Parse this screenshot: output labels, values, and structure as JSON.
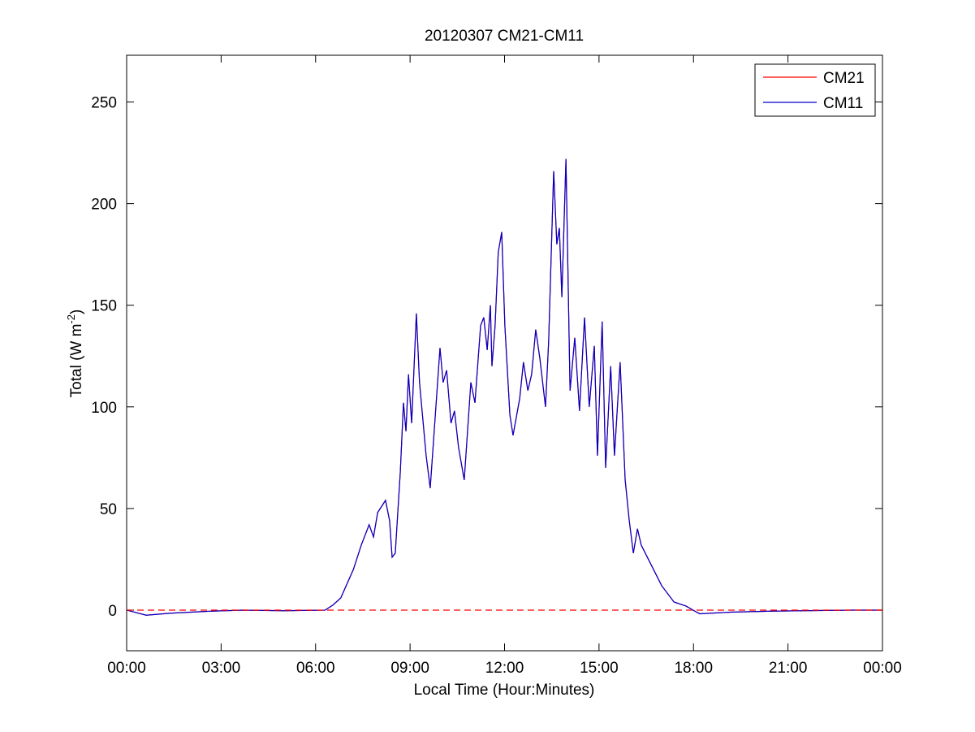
{
  "chart_data": {
    "type": "line",
    "title": "20120307 CM21-CM11",
    "xlabel": "Local Time (Hour:Minutes)",
    "ylabel": {
      "text": "Total (W m",
      "superscript": "-2",
      "suffix": ")"
    },
    "xlim": [
      0,
      24
    ],
    "ylim": [
      -20,
      273
    ],
    "xticks": [
      {
        "value": 0,
        "label": "00:00"
      },
      {
        "value": 3,
        "label": "03:00"
      },
      {
        "value": 6,
        "label": "06:00"
      },
      {
        "value": 9,
        "label": "09:00"
      },
      {
        "value": 12,
        "label": "12:00"
      },
      {
        "value": 15,
        "label": "15:00"
      },
      {
        "value": 18,
        "label": "18:00"
      },
      {
        "value": 21,
        "label": "21:00"
      },
      {
        "value": 24,
        "label": "00:00"
      }
    ],
    "yticks": [
      0,
      50,
      100,
      150,
      200,
      250
    ],
    "hline": 0,
    "hline_color": "#ff0000",
    "legend": "top-right",
    "x": [
      0,
      0.62,
      1.4,
      2.7,
      3.7,
      5,
      6.3,
      6.55,
      6.8,
      7.2,
      7.45,
      7.7,
      7.84,
      7.97,
      8.22,
      8.35,
      8.43,
      8.53,
      8.69,
      8.79,
      8.87,
      8.95,
      9.05,
      9.2,
      9.3,
      9.51,
      9.64,
      9.82,
      9.95,
      10.05,
      10.16,
      10.3,
      10.41,
      10.54,
      10.72,
      10.93,
      11.06,
      11.24,
      11.34,
      11.45,
      11.55,
      11.6,
      11.7,
      11.8,
      11.91,
      12.01,
      12.17,
      12.27,
      12.48,
      12.6,
      12.74,
      12.86,
      12.99,
      13.12,
      13.3,
      13.4,
      13.56,
      13.66,
      13.74,
      13.82,
      13.95,
      14.08,
      14.23,
      14.38,
      14.54,
      14.69,
      14.85,
      14.95,
      15.1,
      15.21,
      15.37,
      15.49,
      15.67,
      15.83,
      15.96,
      16.09,
      16.22,
      16.34,
      16.6,
      16.99,
      17.38,
      17.76,
      18.1,
      18.2,
      19.18,
      20.47,
      23.05,
      24
    ],
    "series": [
      {
        "name": "CM21",
        "color": "#ff0000",
        "values": [
          0,
          -2.5,
          -1.5,
          -0.5,
          0,
          -0.3,
          0,
          2.5,
          6,
          20,
          32,
          42,
          36,
          48,
          54,
          44,
          26,
          28,
          68,
          102,
          88,
          116,
          92,
          146,
          112,
          76,
          60,
          100,
          129,
          112,
          118,
          92,
          98,
          80,
          64,
          112,
          102,
          140,
          144,
          128,
          150,
          120,
          140,
          176,
          186,
          140,
          96,
          86,
          104,
          122,
          108,
          116,
          138,
          124,
          100,
          132,
          216,
          180,
          188,
          154,
          222,
          108,
          134,
          98,
          144,
          100,
          130,
          76,
          142,
          70,
          120,
          76,
          122,
          64,
          44,
          28,
          40,
          32,
          24,
          12,
          4,
          2,
          -1,
          -1.8,
          -1,
          -0.5,
          0,
          0
        ]
      },
      {
        "name": "CM11",
        "color": "#0000cc",
        "values": [
          0,
          -2.5,
          -1.5,
          -0.5,
          0,
          -0.3,
          0,
          2.5,
          6,
          20,
          32,
          42,
          36,
          48,
          54,
          44,
          26,
          28,
          68,
          102,
          88,
          116,
          92,
          146,
          112,
          76,
          60,
          100,
          129,
          112,
          118,
          92,
          98,
          80,
          64,
          112,
          102,
          140,
          144,
          128,
          150,
          120,
          140,
          176,
          186,
          140,
          96,
          86,
          104,
          122,
          108,
          116,
          138,
          124,
          100,
          132,
          216,
          180,
          188,
          154,
          222,
          108,
          134,
          98,
          144,
          100,
          130,
          76,
          142,
          70,
          120,
          76,
          122,
          64,
          44,
          28,
          40,
          32,
          24,
          12,
          4,
          2,
          -1,
          -1.8,
          -1,
          -0.5,
          0,
          0
        ]
      }
    ]
  }
}
